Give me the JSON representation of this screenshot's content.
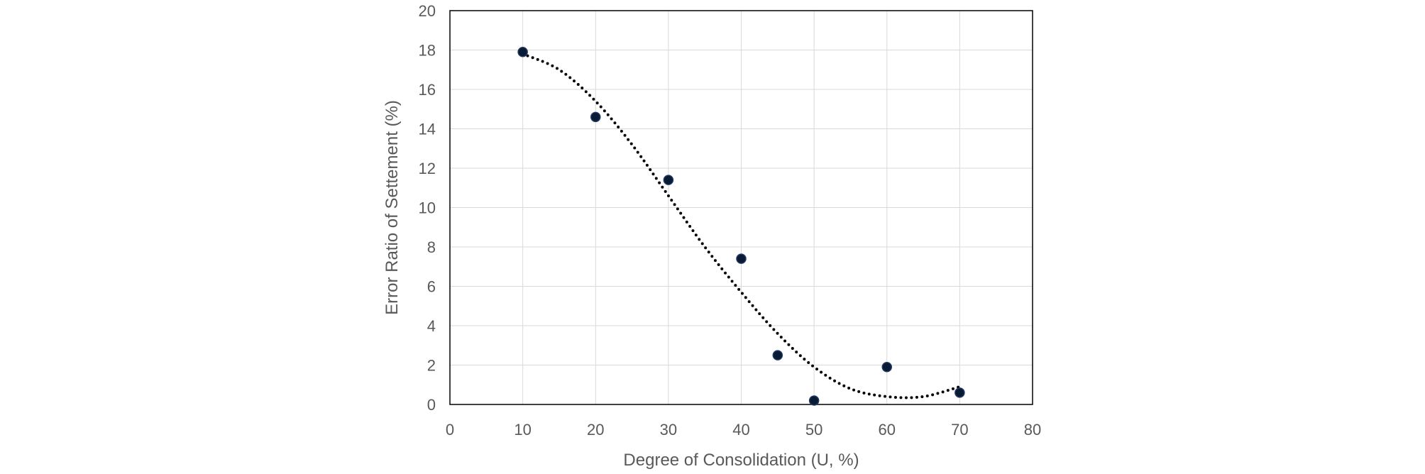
{
  "chart_data": {
    "type": "scatter",
    "title": "",
    "xlabel": "Degree of Consolidation (U, %)",
    "ylabel": "Error Ratio of Settement (%)",
    "xlim": [
      0,
      80
    ],
    "ylim": [
      0,
      20
    ],
    "x_ticks": [
      "0",
      "10",
      "20",
      "30",
      "40",
      "50",
      "60",
      "70",
      "80"
    ],
    "y_ticks": [
      "0",
      "2",
      "4",
      "6",
      "8",
      "10",
      "12",
      "14",
      "16",
      "18",
      "20"
    ],
    "grid": true,
    "legend": "none",
    "series": [
      {
        "marker_color": "#0b1a33",
        "points": [
          {
            "x": 10,
            "y": 17.9
          },
          {
            "x": 20,
            "y": 14.6
          },
          {
            "x": 30,
            "y": 11.4
          },
          {
            "x": 40,
            "y": 7.4
          },
          {
            "x": 45,
            "y": 2.5
          },
          {
            "x": 50,
            "y": 0.2
          },
          {
            "x": 60,
            "y": 1.9
          },
          {
            "x": 70,
            "y": 0.6
          }
        ]
      }
    ],
    "trendline": {
      "style": "dotted",
      "color": "#000000",
      "points": [
        {
          "x": 10,
          "y": 17.8
        },
        {
          "x": 15,
          "y": 17.0
        },
        {
          "x": 20,
          "y": 15.4
        },
        {
          "x": 25,
          "y": 13.2
        },
        {
          "x": 30,
          "y": 10.6
        },
        {
          "x": 35,
          "y": 8.0
        },
        {
          "x": 40,
          "y": 5.7
        },
        {
          "x": 45,
          "y": 3.6
        },
        {
          "x": 50,
          "y": 1.9
        },
        {
          "x": 55,
          "y": 0.8
        },
        {
          "x": 60,
          "y": 0.4
        },
        {
          "x": 65,
          "y": 0.4
        },
        {
          "x": 70,
          "y": 0.9
        }
      ]
    }
  }
}
